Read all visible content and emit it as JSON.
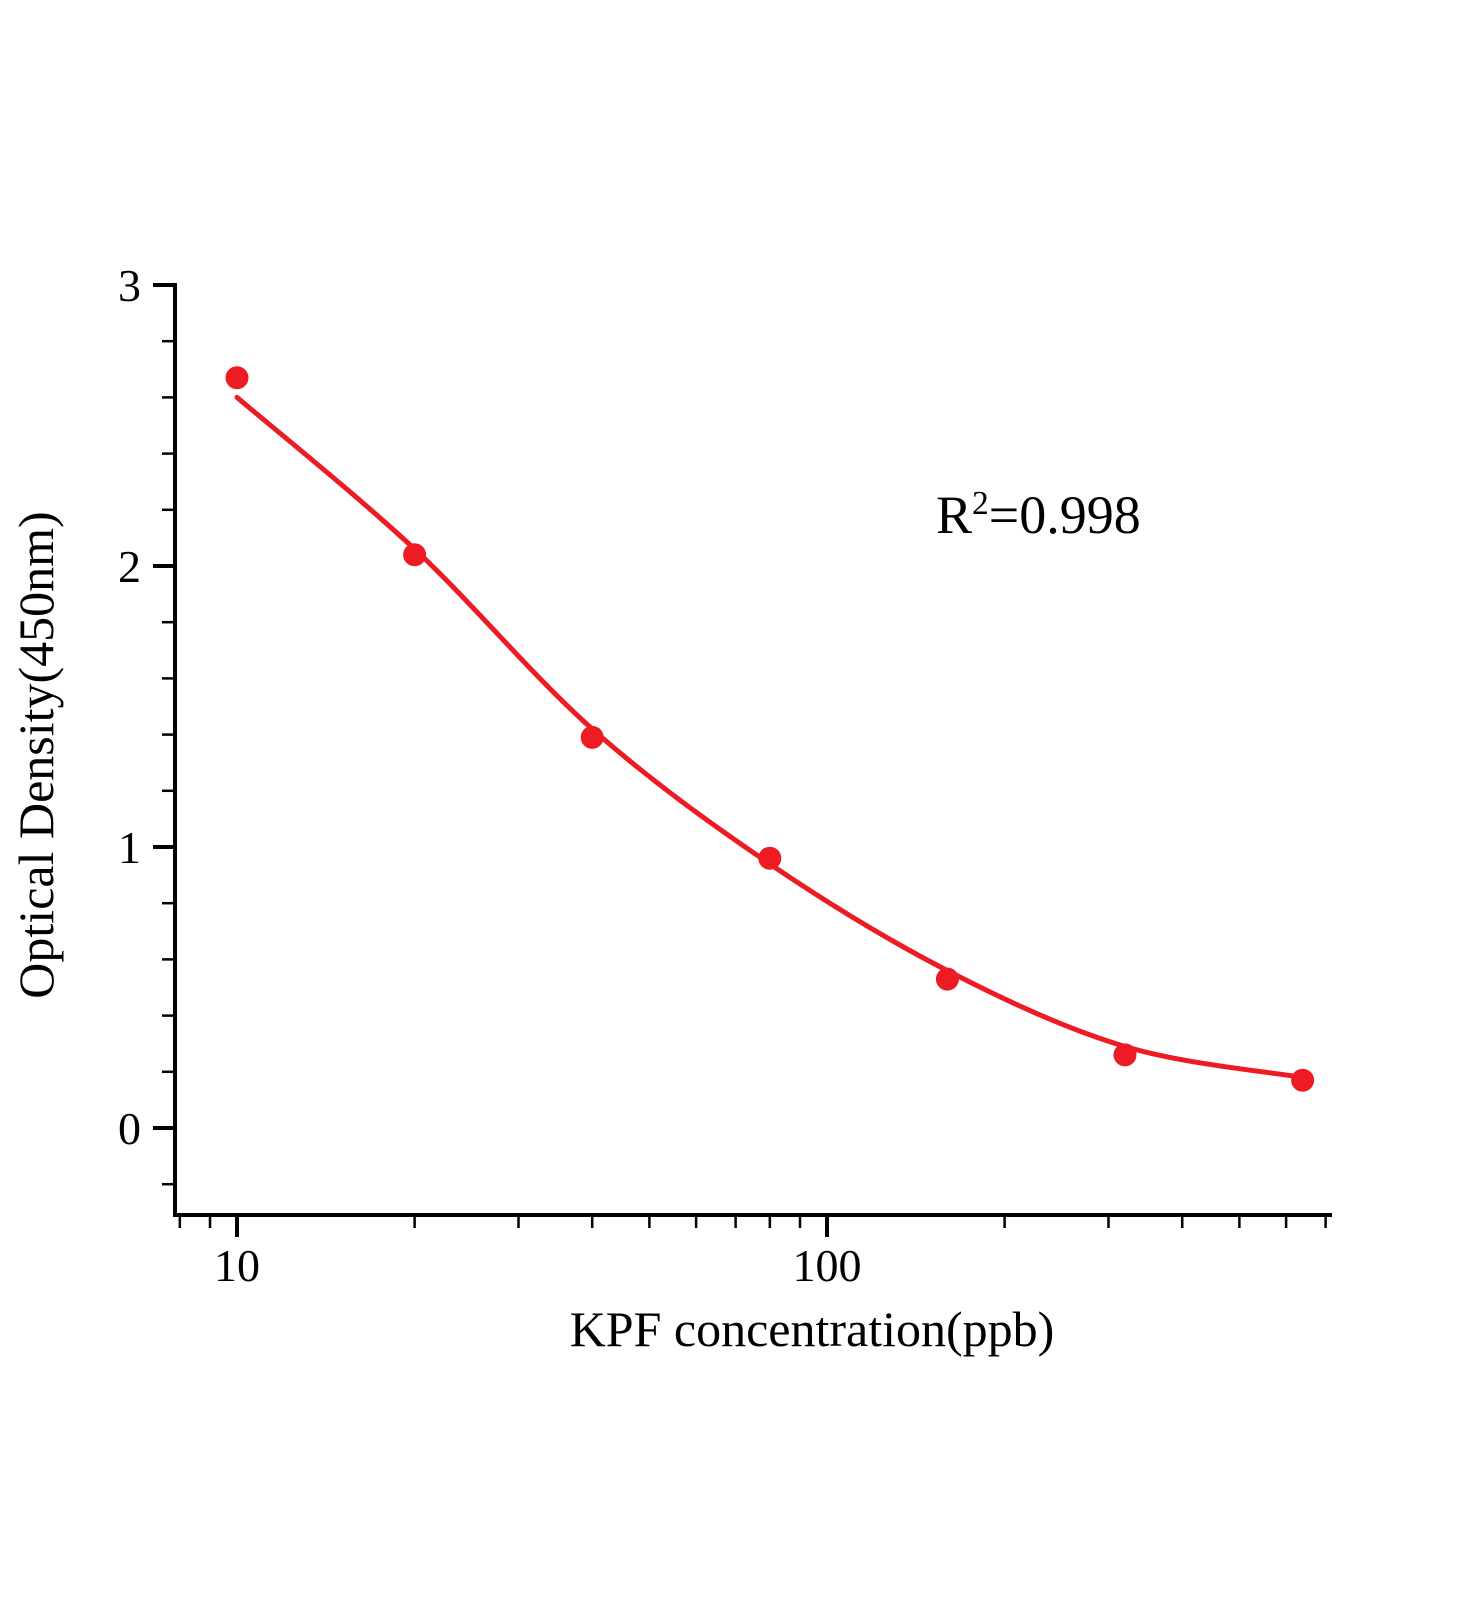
{
  "chart_data": {
    "type": "scatter",
    "title": "",
    "xlabel": "KPF concentration(ppb)",
    "ylabel": "Optical Density(450nm)",
    "annotation": {
      "base": "R",
      "exponent": "2",
      "rest": "=0.998",
      "r_squared": 0.998
    },
    "x_scale": "log",
    "x": [
      10,
      20,
      40,
      80,
      160,
      320,
      640
    ],
    "y": [
      2.67,
      2.04,
      1.39,
      0.96,
      0.53,
      0.26,
      0.17
    ],
    "fit": {
      "curve_x": [
        10,
        20,
        40,
        80,
        160,
        320,
        640
      ],
      "curve_y": [
        2.6,
        2.06,
        1.42,
        0.94,
        0.56,
        0.29,
        0.18
      ]
    },
    "xlim": [
      7.8,
      712
    ],
    "ylim": [
      -0.31,
      3.0
    ],
    "y_ticks": [
      0,
      1,
      2,
      3
    ],
    "x_major_ticks": [
      10,
      100
    ],
    "x_tick_labels": [
      "10",
      "100"
    ],
    "point_color": "#ed1c24",
    "line_color": "#ed1c24",
    "axis_color": "#000000",
    "grid": false,
    "legend": "none"
  }
}
